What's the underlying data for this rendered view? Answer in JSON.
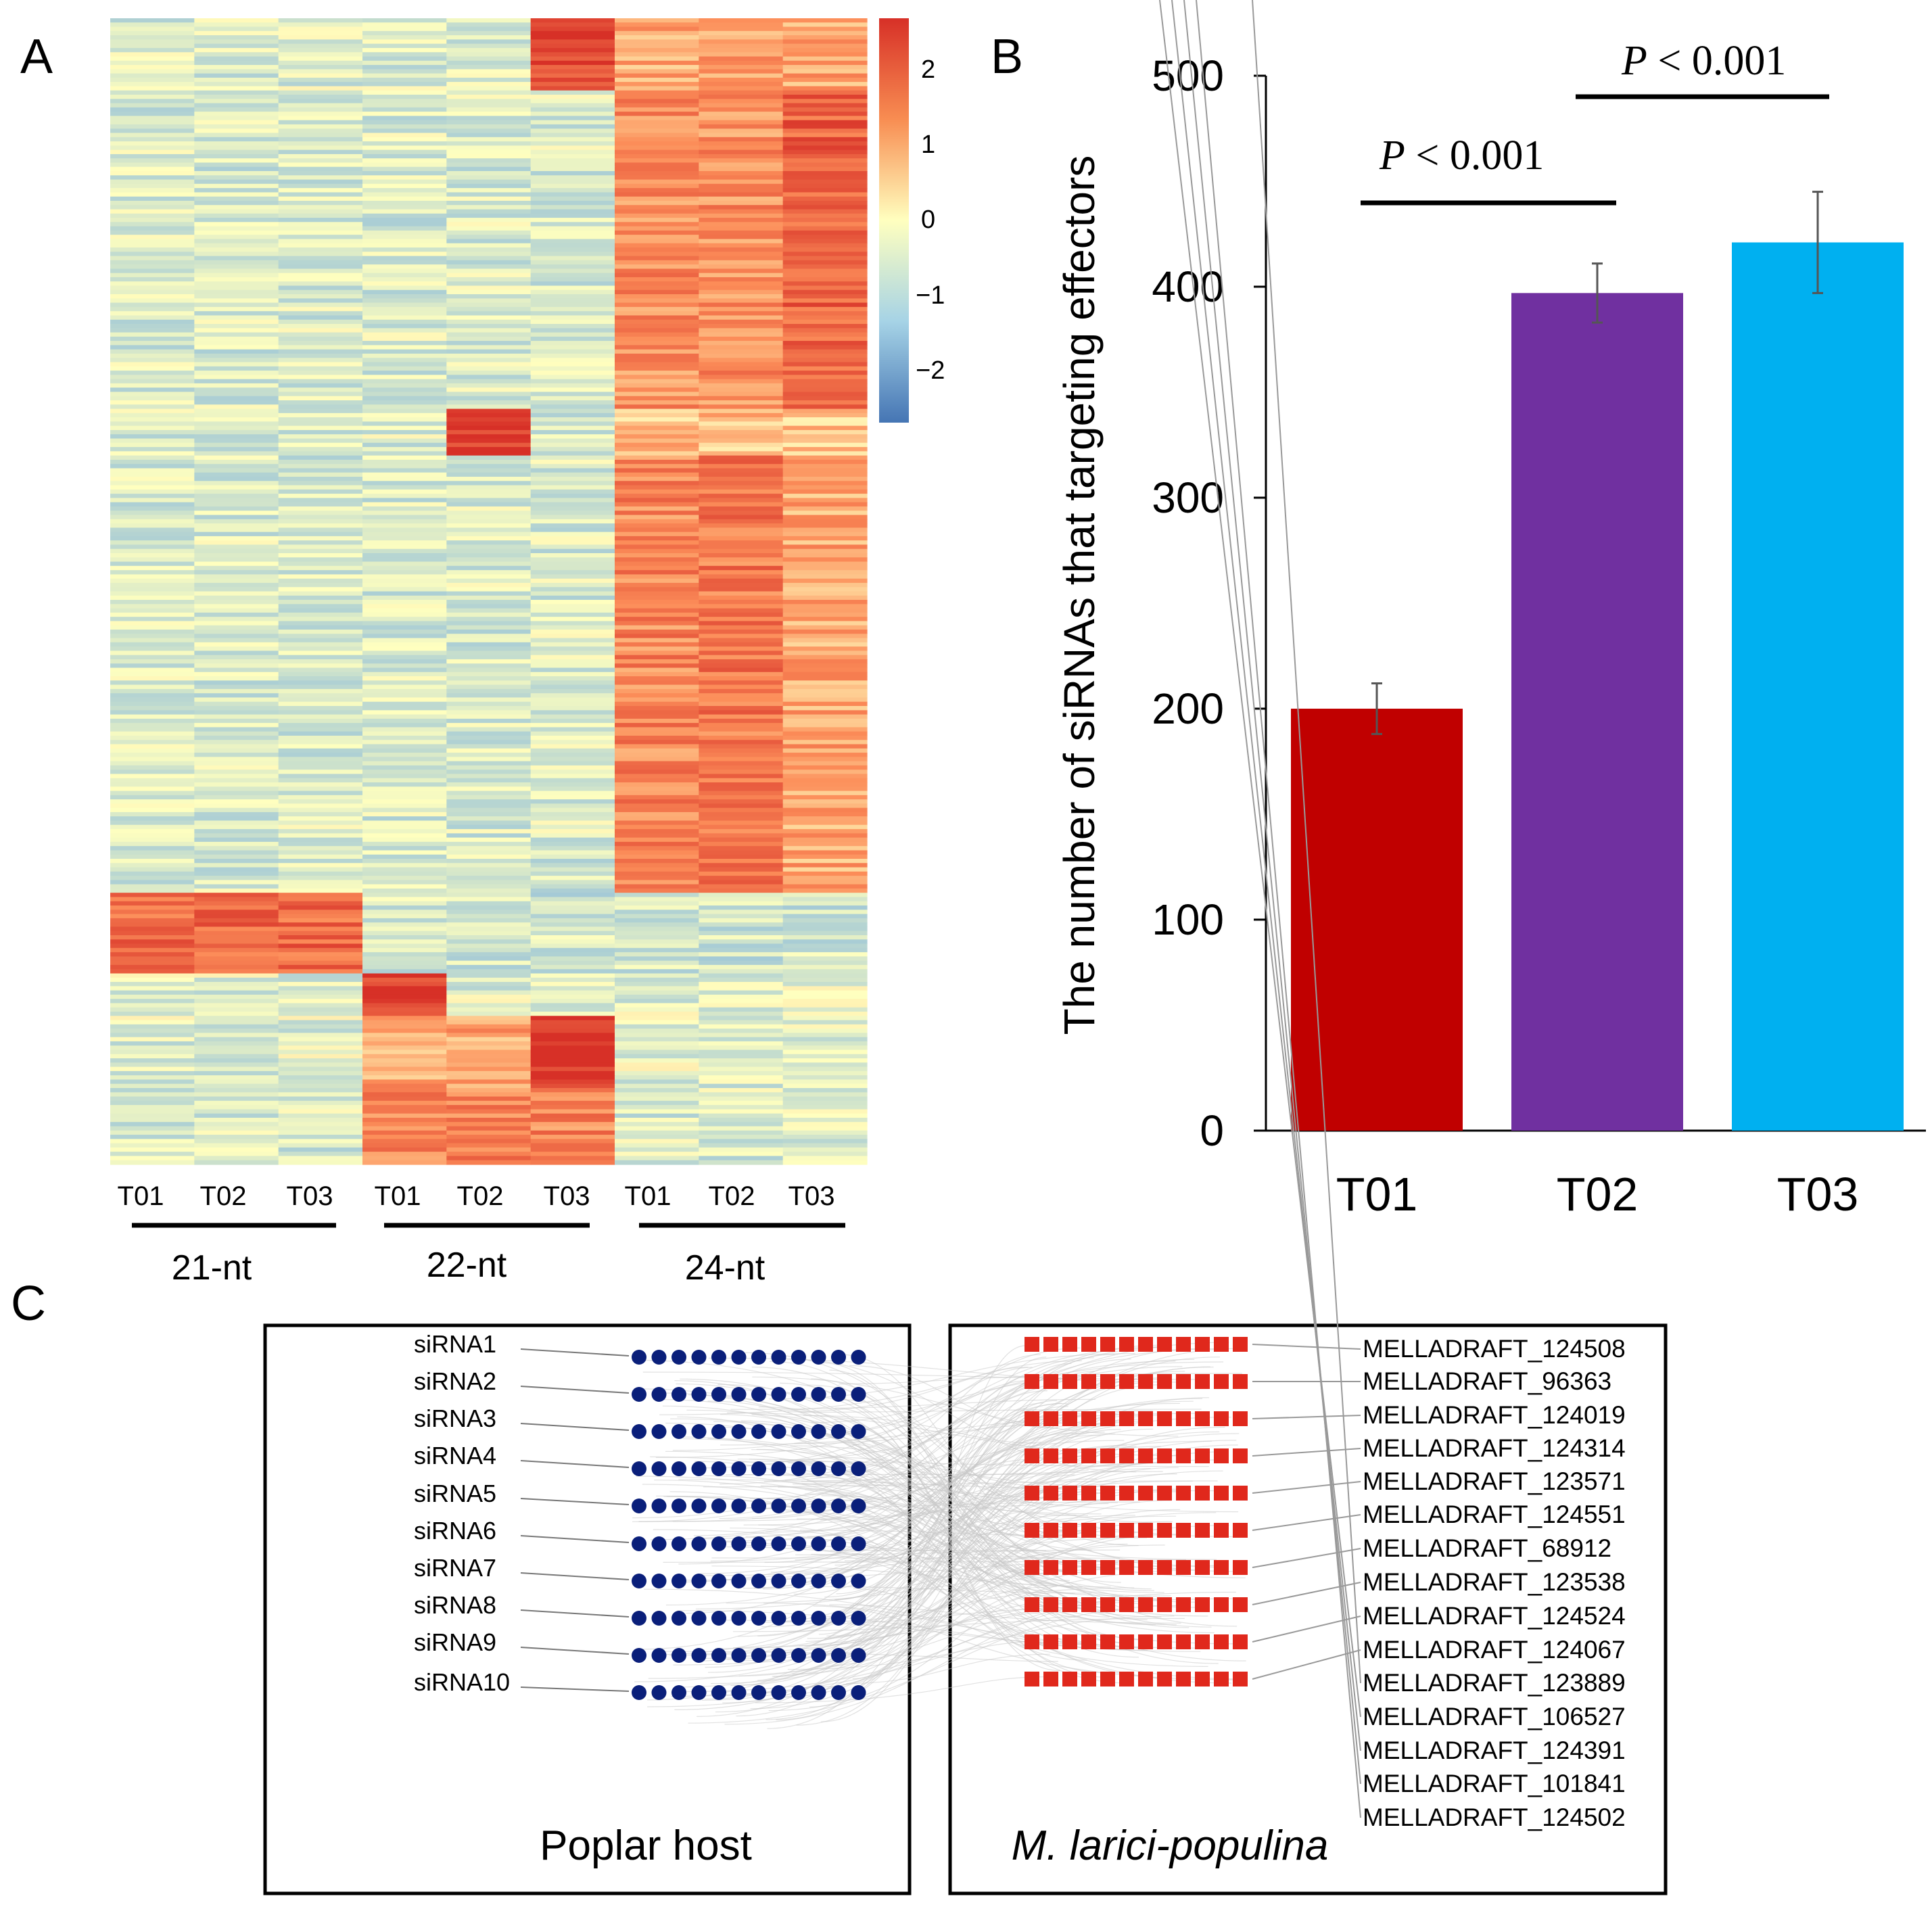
{
  "panels": {
    "a": "A",
    "b": "B",
    "c": "C"
  },
  "heatmap": {
    "columns": [
      "T01",
      "T02",
      "T03",
      "T01",
      "T02",
      "T03",
      "T01",
      "T02",
      "T03"
    ],
    "groups": [
      "21-nt",
      "22-nt",
      "24-nt"
    ],
    "colorbar": {
      "ticks": [
        2,
        1,
        0,
        -1,
        -2
      ],
      "tick_labels": [
        "2",
        "1",
        "0",
        "−1",
        "−2"
      ],
      "min_color": "#4575b4",
      "mid_color": "#ffffbf",
      "max_color": "#d73027"
    }
  },
  "chart_data": {
    "type": "bar",
    "title": "",
    "xlabel": "",
    "ylabel": "The number of siRNAs that targeting effectors",
    "ylim": [
      0,
      500
    ],
    "yticks": [
      0,
      100,
      200,
      300,
      400,
      500
    ],
    "categories": [
      "T01",
      "T02",
      "T03"
    ],
    "values": [
      200,
      397,
      421
    ],
    "errors": [
      12,
      14,
      24
    ],
    "colors": [
      "#c00000",
      "#7030a0",
      "#00b0f0"
    ],
    "annotations": [
      {
        "label_prefix": "P",
        "label_rest": " < 0.001",
        "from": "T01",
        "to": "T02"
      },
      {
        "label_prefix": "P",
        "label_rest": " < 0.001",
        "from": "T02",
        "to": "T03"
      }
    ]
  },
  "network": {
    "host_label": "Poplar host",
    "pathogen_label": "M. larici-populina",
    "sirnas": [
      "siRNA1",
      "siRNA2",
      "siRNA3",
      "siRNA4",
      "siRNA5",
      "siRNA6",
      "siRNA7",
      "siRNA8",
      "siRNA9",
      "siRNA10"
    ],
    "targets": [
      "MELLADRAFT_124508",
      "MELLADRAFT_96363",
      "MELLADRAFT_124019",
      "MELLADRAFT_124314",
      "MELLADRAFT_123571",
      "MELLADRAFT_124551",
      "MELLADRAFT_68912",
      "MELLADRAFT_123538",
      "MELLADRAFT_124524",
      "MELLADRAFT_124067",
      "MELLADRAFT_123889",
      "MELLADRAFT_106527",
      "MELLADRAFT_124391",
      "MELLADRAFT_101841",
      "MELLADRAFT_124502"
    ],
    "node_color_host": "#0a1f7a",
    "node_color_pathogen": "#e0281c"
  }
}
